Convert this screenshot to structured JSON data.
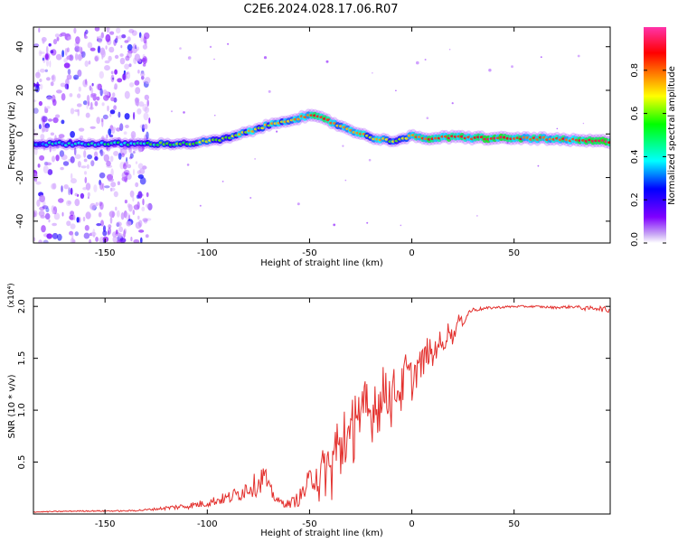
{
  "title": "C2E6.2024.028.17.06.R07",
  "colors": {
    "snr_line": "#e3302d",
    "axis": "#000000"
  },
  "chart_data": [
    {
      "type": "heatmap",
      "xlabel": "Height of straight line (km)",
      "ylabel": "Frequency (Hz)",
      "xlim": [
        -185,
        97
      ],
      "ylim": [
        -50,
        49
      ],
      "xticks": [
        -150,
        -100,
        -50,
        0,
        50
      ],
      "yticks": [
        -40,
        -20,
        0,
        20,
        40
      ],
      "colorbar": {
        "label": "Normalized spectral amplitude",
        "range": [
          0.0,
          1.0
        ],
        "ticks": [
          "0.0",
          "0.2",
          "0.4",
          "0.6",
          "0.8"
        ],
        "tick_values": [
          0.0,
          0.2,
          0.4,
          0.6,
          0.8
        ],
        "colormap": [
          "#ffffff",
          "#8000ff",
          "#0000ff",
          "#00ffff",
          "#00ff00",
          "#ffff00",
          "#ff8000",
          "#ff0000",
          "#ff33aa"
        ]
      },
      "ridge": {
        "x": [
          -183,
          -160,
          -140,
          -125,
          -110,
          -100,
          -90,
          -80,
          -70,
          -60,
          -52,
          -47,
          -42,
          -36,
          -30,
          -25,
          -20,
          -15,
          -10,
          -5,
          0,
          5,
          10,
          20,
          40,
          60,
          80,
          95
        ],
        "y": [
          -4.5,
          -4.5,
          -4.5,
          -4.5,
          -4.5,
          -3.5,
          -2,
          1,
          4,
          6.5,
          8,
          8,
          6.5,
          4,
          2,
          0,
          -1.5,
          -2.5,
          -3,
          -2.5,
          -1,
          -2,
          -2,
          -1.5,
          -2,
          -2,
          -3,
          -3.5
        ],
        "amplitude": [
          0.25,
          0.3,
          0.35,
          0.4,
          0.45,
          0.5,
          0.5,
          0.55,
          0.55,
          0.6,
          0.7,
          0.75,
          0.7,
          0.65,
          0.6,
          0.6,
          0.55,
          0.55,
          0.5,
          0.55,
          0.6,
          0.7,
          0.75,
          0.78,
          0.8,
          0.7,
          0.75,
          0.85
        ]
      },
      "noise_region_x": [
        -185,
        -128
      ]
    },
    {
      "type": "line",
      "xlabel": "Height of straight line (km)",
      "ylabel": "SNR (10 * v/v)",
      "y_multiplier": "(x10⁴)",
      "xlim": [
        -185,
        97
      ],
      "ylim": [
        0.0,
        2.08
      ],
      "xticks": [
        -150,
        -100,
        -50,
        0,
        50
      ],
      "yticks": [
        "0.5",
        "1.0",
        "1.5",
        "2.0"
      ],
      "ytick_values": [
        0.5,
        1.0,
        1.5,
        2.0
      ],
      "series": [
        {
          "color": "#e3302d",
          "x": [
            -185,
            -160,
            -140,
            -130,
            -125,
            -120,
            -110,
            -100,
            -95,
            -90,
            -85,
            -80,
            -75,
            -72,
            -70,
            -65,
            -60,
            -55,
            -50,
            -47,
            -45,
            -42,
            -40,
            -37,
            -35,
            -33,
            -30,
            -27,
            -25,
            -22,
            -20,
            -18,
            -15,
            -13,
            -10,
            -8,
            -5,
            -3,
            0,
            3,
            5,
            8,
            10,
            13,
            15,
            18,
            20,
            23,
            25,
            28,
            30,
            35,
            40,
            50,
            60,
            70,
            80,
            85,
            90,
            95
          ],
          "y": [
            0.02,
            0.03,
            0.03,
            0.04,
            0.05,
            0.06,
            0.08,
            0.11,
            0.14,
            0.16,
            0.2,
            0.27,
            0.3,
            0.4,
            0.25,
            0.12,
            0.1,
            0.16,
            0.32,
            0.45,
            0.3,
            0.5,
            0.4,
            0.7,
            0.55,
            0.9,
            0.6,
            1.2,
            0.85,
            1.05,
            0.95,
            1.15,
            1.05,
            1.3,
            1.1,
            1.25,
            1.2,
            1.4,
            1.3,
            1.45,
            1.45,
            1.6,
            1.5,
            1.7,
            1.6,
            1.8,
            1.7,
            1.88,
            1.85,
            1.95,
            1.97,
            1.98,
            1.99,
            2.0,
            2.0,
            1.99,
            2.0,
            1.98,
            1.99,
            1.97
          ],
          "jitter": [
            0.005,
            0.006,
            0.006,
            0.01,
            0.012,
            0.02,
            0.03,
            0.04,
            0.05,
            0.06,
            0.08,
            0.1,
            0.12,
            0.12,
            0.08,
            0.04,
            0.04,
            0.08,
            0.14,
            0.2,
            0.25,
            0.3,
            0.35,
            0.4,
            0.4,
            0.4,
            0.4,
            0.4,
            0.35,
            0.35,
            0.3,
            0.3,
            0.3,
            0.28,
            0.26,
            0.24,
            0.22,
            0.2,
            0.2,
            0.18,
            0.16,
            0.15,
            0.14,
            0.12,
            0.1,
            0.08,
            0.07,
            0.05,
            0.04,
            0.03,
            0.02,
            0.015,
            0.012,
            0.01,
            0.01,
            0.012,
            0.015,
            0.02,
            0.025,
            0.03
          ]
        }
      ]
    }
  ]
}
